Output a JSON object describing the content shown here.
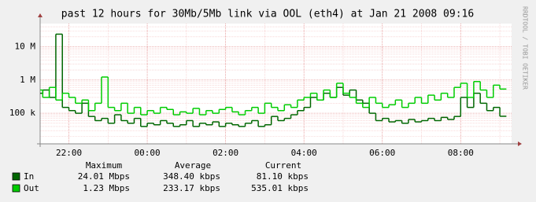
{
  "chart_data": {
    "type": "line",
    "title": "past 12 hours for 30Mb/5Mb link via OOL (eth4) at Jan 21 2008 09:16",
    "side_text": "RRDTOOL / TOBI OETIKER",
    "log_scale": true,
    "grid": true,
    "categories": [
      null,
      null,
      null,
      null,
      "22:00",
      null,
      null,
      null,
      null,
      null,
      null,
      null,
      null,
      null,
      null,
      null,
      "00:00",
      null,
      null,
      null,
      null,
      null,
      null,
      null,
      null,
      null,
      null,
      null,
      "02:00",
      null,
      null,
      null,
      null,
      null,
      null,
      null,
      null,
      null,
      null,
      null,
      "04:00",
      null,
      null,
      null,
      null,
      null,
      null,
      null,
      null,
      null,
      null,
      null,
      "06:00",
      null,
      null,
      null,
      null,
      null,
      null,
      null,
      null,
      null,
      null,
      null,
      "08:00",
      null,
      null,
      null,
      null,
      null,
      null,
      null
    ],
    "ylim": [
      12000,
      50000000
    ],
    "yticks": [
      {
        "value": 100000,
        "label": "100 k"
      },
      {
        "value": 1000000,
        "label": "1 M"
      },
      {
        "value": 10000000,
        "label": "10 M"
      }
    ],
    "stats_headers": [
      "Maximum",
      "Average",
      "Current"
    ],
    "series": [
      {
        "name": "In",
        "color": "#006600",
        "stats": [
          "24.01 Mbps",
          "348.40 kbps",
          "81.10 kbps"
        ],
        "values": [
          400000,
          500000,
          300000,
          24010000,
          150000,
          120000,
          100000,
          200000,
          80000,
          60000,
          70000,
          50000,
          90000,
          60000,
          50000,
          70000,
          40000,
          50000,
          45000,
          60000,
          50000,
          40000,
          45000,
          60000,
          40000,
          50000,
          45000,
          55000,
          40000,
          50000,
          45000,
          40000,
          50000,
          60000,
          40000,
          45000,
          80000,
          60000,
          70000,
          90000,
          120000,
          150000,
          300000,
          250000,
          400000,
          300000,
          600000,
          350000,
          500000,
          250000,
          200000,
          100000,
          60000,
          70000,
          55000,
          60000,
          50000,
          65000,
          55000,
          60000,
          70000,
          60000,
          75000,
          65000,
          80000,
          300000,
          150000,
          400000,
          200000,
          120000,
          150000,
          81100
        ]
      },
      {
        "name": "Out",
        "color": "#00cc00",
        "stats": [
          "1.23 Mbps",
          "233.17 kbps",
          "535.01 kbps"
        ],
        "values": [
          500000,
          300000,
          600000,
          250000,
          400000,
          300000,
          200000,
          250000,
          120000,
          200000,
          1230000,
          150000,
          120000,
          200000,
          100000,
          150000,
          90000,
          120000,
          100000,
          150000,
          130000,
          90000,
          110000,
          100000,
          140000,
          90000,
          120000,
          100000,
          130000,
          150000,
          110000,
          90000,
          120000,
          150000,
          100000,
          200000,
          150000,
          120000,
          180000,
          150000,
          250000,
          300000,
          400000,
          250000,
          500000,
          300000,
          800000,
          400000,
          300000,
          200000,
          150000,
          300000,
          200000,
          150000,
          180000,
          250000,
          150000,
          200000,
          300000,
          200000,
          350000,
          250000,
          400000,
          300000,
          600000,
          800000,
          300000,
          900000,
          500000,
          300000,
          700000,
          535010
        ]
      }
    ]
  }
}
